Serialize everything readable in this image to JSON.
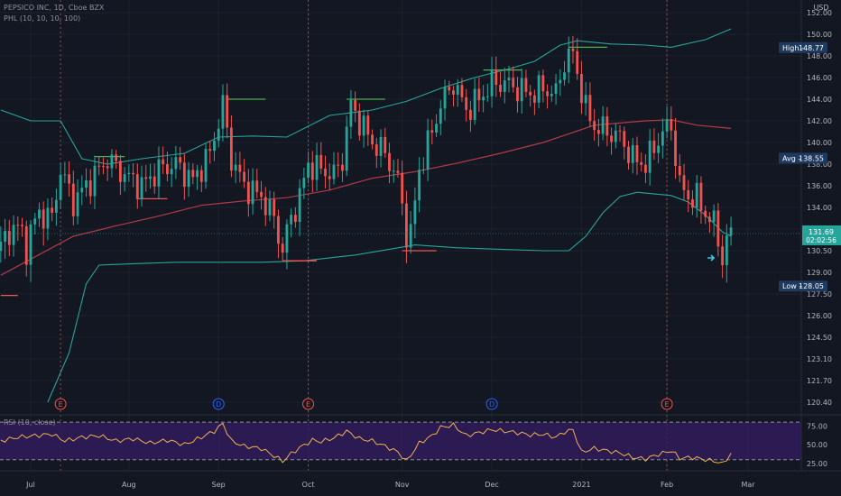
{
  "header": {
    "symbol_line": "PEPSICO INC, 1D, Cboe BZX",
    "indicator_line": "PHL (10, 10, 10, 100)",
    "rsi_label": "RSI (10, close)",
    "currency": "USD"
  },
  "colors": {
    "background": "#131722",
    "up": "#26a69a",
    "down": "#ef5350",
    "bands": "#26a69a",
    "ma": "#b23a48",
    "rsi_line": "#f0b24f",
    "rsi_fill": "#311b5c",
    "earnings": "#ef5350",
    "dividend": "#2962ff"
  },
  "price_axis": {
    "ticks": [
      "152.00",
      "150.00",
      "148.00",
      "146.00",
      "144.00",
      "142.00",
      "140.00",
      "138.00",
      "136.00",
      "134.00",
      "132.00",
      "130.50",
      "129.00",
      "127.50",
      "126.00",
      "124.50",
      "123.10",
      "121.70",
      "120.40"
    ],
    "rows": [
      152.0,
      150.0,
      148.0,
      146.0,
      144.0,
      142.0,
      140.0,
      138.0,
      136.0,
      134.0,
      132.0,
      130.5,
      129.0,
      127.5,
      126.0,
      124.5,
      123.1,
      121.7,
      120.4
    ],
    "high_label": "High",
    "high_value": "148.77",
    "avg_label": "Avg",
    "avg_value": "138.55",
    "low_label": "Low",
    "low_value": "128.05",
    "last_price": "131.69",
    "countdown": "02:02:56"
  },
  "rsi_axis": {
    "ticks": [
      "75.00",
      "50.00",
      "25.00"
    ],
    "rows": [
      75,
      50,
      25
    ]
  },
  "time_axis": {
    "labels": [
      "Jul",
      "Aug",
      "Sep",
      "Oct",
      "Nov",
      "Dec",
      "2021",
      "Feb",
      "Mar"
    ],
    "days": [
      0,
      23,
      44,
      65,
      87,
      108,
      129,
      149,
      168
    ]
  },
  "event_markers": [
    {
      "label": "E",
      "day": 7
    },
    {
      "label": "D",
      "day": 44
    },
    {
      "label": "E",
      "day": 65
    },
    {
      "label": "D",
      "day": 108
    },
    {
      "label": "E",
      "day": 149
    }
  ],
  "chart_data": {
    "type": "candlestick",
    "y_range": [
      120.4,
      152.0
    ],
    "rsi_range": [
      20,
      85
    ],
    "ohlc_anchors": [
      [
        -7,
        130.5
      ],
      [
        -4,
        132.5
      ],
      [
        -1,
        131.0
      ],
      [
        2,
        133.5
      ],
      [
        5,
        133.0
      ],
      [
        7,
        137.5
      ],
      [
        10,
        134.5
      ],
      [
        14,
        136.5
      ],
      [
        18,
        138.5
      ],
      [
        22,
        137.0
      ],
      [
        26,
        136.0
      ],
      [
        30,
        137.5
      ],
      [
        34,
        138.0
      ],
      [
        38,
        136.5
      ],
      [
        42,
        139.0
      ],
      [
        45,
        143.5
      ],
      [
        47,
        138.5
      ],
      [
        50,
        136.0
      ],
      [
        54,
        135.0
      ],
      [
        57,
        133.0
      ],
      [
        59,
        130.5
      ],
      [
        61,
        133.0
      ],
      [
        63,
        135.0
      ],
      [
        65,
        138.0
      ],
      [
        68,
        137.5
      ],
      [
        71,
        137.0
      ],
      [
        73,
        138.5
      ],
      [
        75,
        143.5
      ],
      [
        77,
        142.0
      ],
      [
        80,
        140.0
      ],
      [
        83,
        139.0
      ],
      [
        86,
        136.5
      ],
      [
        88,
        132.0
      ],
      [
        89,
        131.5
      ],
      [
        91,
        137.5
      ],
      [
        94,
        141.0
      ],
      [
        96,
        143.5
      ],
      [
        99,
        145.5
      ],
      [
        102,
        143.0
      ],
      [
        105,
        144.0
      ],
      [
        108,
        145.5
      ],
      [
        111,
        145.5
      ],
      [
        114,
        145.0
      ],
      [
        117,
        144.5
      ],
      [
        120,
        145.0
      ],
      [
        123,
        144.5
      ],
      [
        125,
        147.5
      ],
      [
        127,
        148.2
      ],
      [
        130,
        143.0
      ],
      [
        132,
        141.5
      ],
      [
        135,
        141.0
      ],
      [
        138,
        140.5
      ],
      [
        141,
        138.5
      ],
      [
        144,
        138.0
      ],
      [
        146,
        139.5
      ],
      [
        148,
        141.0
      ],
      [
        150,
        141.5
      ],
      [
        152,
        136.0
      ],
      [
        154,
        135.0
      ],
      [
        156,
        134.8
      ],
      [
        158,
        133.5
      ],
      [
        160,
        132.5
      ],
      [
        162,
        130.2
      ],
      [
        164,
        131.7
      ]
    ],
    "upper_band": [
      [
        -7,
        143.0
      ],
      [
        0,
        142.0
      ],
      [
        7,
        142.0
      ],
      [
        12,
        138.5
      ],
      [
        18,
        138.0
      ],
      [
        26,
        138.5
      ],
      [
        36,
        139.0
      ],
      [
        44,
        140.5
      ],
      [
        52,
        140.6
      ],
      [
        60,
        140.5
      ],
      [
        70,
        142.5
      ],
      [
        80,
        143.0
      ],
      [
        88,
        143.8
      ],
      [
        96,
        145.0
      ],
      [
        104,
        146.0
      ],
      [
        112,
        146.8
      ],
      [
        118,
        147.5
      ],
      [
        124,
        149.0
      ],
      [
        128,
        149.4
      ],
      [
        136,
        149.1
      ],
      [
        144,
        149.0
      ],
      [
        150,
        148.8
      ],
      [
        158,
        149.5
      ],
      [
        164,
        150.5
      ]
    ],
    "lower_band": [
      [
        4,
        120.4
      ],
      [
        9,
        123.5
      ],
      [
        13,
        128.2
      ],
      [
        16,
        129.5
      ],
      [
        24,
        129.6
      ],
      [
        34,
        129.7
      ],
      [
        44,
        129.7
      ],
      [
        54,
        129.7
      ],
      [
        64,
        129.8
      ],
      [
        76,
        130.2
      ],
      [
        84,
        130.6
      ],
      [
        90,
        130.9
      ],
      [
        100,
        130.7
      ],
      [
        110,
        130.6
      ],
      [
        120,
        130.5
      ],
      [
        126,
        130.5
      ],
      [
        130,
        131.5
      ],
      [
        134,
        133.5
      ],
      [
        138,
        135.0
      ],
      [
        142,
        135.4
      ],
      [
        150,
        135.1
      ],
      [
        154,
        134.5
      ],
      [
        158,
        133.3
      ],
      [
        162,
        131.8
      ],
      [
        164,
        131.5
      ]
    ],
    "ma_100": [
      [
        -7,
        128.8
      ],
      [
        10,
        131.5
      ],
      [
        20,
        132.3
      ],
      [
        30,
        133.2
      ],
      [
        40,
        134.2
      ],
      [
        50,
        134.6
      ],
      [
        60,
        134.9
      ],
      [
        70,
        135.6
      ],
      [
        80,
        136.7
      ],
      [
        90,
        137.3
      ],
      [
        100,
        138.1
      ],
      [
        110,
        139.0
      ],
      [
        120,
        140.0
      ],
      [
        126,
        140.8
      ],
      [
        132,
        141.6
      ],
      [
        138,
        141.8
      ],
      [
        144,
        142.0
      ],
      [
        150,
        142.1
      ],
      [
        156,
        141.6
      ],
      [
        164,
        141.3
      ]
    ],
    "hl_segments": [
      {
        "type": "high",
        "from": 15,
        "to": 22,
        "y": 138.7
      },
      {
        "type": "low",
        "from": 25,
        "to": 32,
        "y": 134.8
      },
      {
        "type": "high",
        "from": 46,
        "to": 55,
        "y": 144.0
      },
      {
        "type": "low",
        "from": 59,
        "to": 67,
        "y": 129.8
      },
      {
        "type": "high",
        "from": 74,
        "to": 83,
        "y": 144.0
      },
      {
        "type": "low",
        "from": 87,
        "to": 95,
        "y": 130.5
      },
      {
        "type": "high",
        "from": 106,
        "to": 115,
        "y": 146.7
      },
      {
        "type": "high",
        "from": 126,
        "to": 135,
        "y": 148.8
      },
      {
        "type": "low",
        "from": -7,
        "to": -3,
        "y": 127.4
      }
    ],
    "rsi_anchors": [
      [
        -7,
        55
      ],
      [
        -3,
        60
      ],
      [
        1,
        62
      ],
      [
        5,
        64
      ],
      [
        8,
        55
      ],
      [
        12,
        60
      ],
      [
        16,
        62
      ],
      [
        20,
        55
      ],
      [
        24,
        58
      ],
      [
        28,
        52
      ],
      [
        32,
        56
      ],
      [
        36,
        50
      ],
      [
        40,
        60
      ],
      [
        43,
        68
      ],
      [
        45,
        78
      ],
      [
        47,
        55
      ],
      [
        50,
        48
      ],
      [
        54,
        45
      ],
      [
        57,
        35
      ],
      [
        59,
        28
      ],
      [
        61,
        38
      ],
      [
        63,
        46
      ],
      [
        66,
        56
      ],
      [
        68,
        54
      ],
      [
        71,
        59
      ],
      [
        74,
        68
      ],
      [
        77,
        58
      ],
      [
        80,
        55
      ],
      [
        83,
        48
      ],
      [
        86,
        40
      ],
      [
        88,
        28
      ],
      [
        91,
        52
      ],
      [
        94,
        62
      ],
      [
        96,
        73
      ],
      [
        99,
        76
      ],
      [
        102,
        62
      ],
      [
        105,
        66
      ],
      [
        108,
        70
      ],
      [
        111,
        68
      ],
      [
        114,
        66
      ],
      [
        117,
        63
      ],
      [
        120,
        64
      ],
      [
        123,
        60
      ],
      [
        125,
        67
      ],
      [
        127,
        70
      ],
      [
        129,
        40
      ],
      [
        132,
        45
      ],
      [
        135,
        42
      ],
      [
        138,
        39
      ],
      [
        141,
        33
      ],
      [
        144,
        31
      ],
      [
        147,
        37
      ],
      [
        150,
        42
      ],
      [
        152,
        32
      ],
      [
        155,
        33
      ],
      [
        158,
        30
      ],
      [
        161,
        27
      ],
      [
        162,
        24
      ],
      [
        164,
        38
      ]
    ],
    "rsi_levels": [
      80,
      30
    ]
  }
}
